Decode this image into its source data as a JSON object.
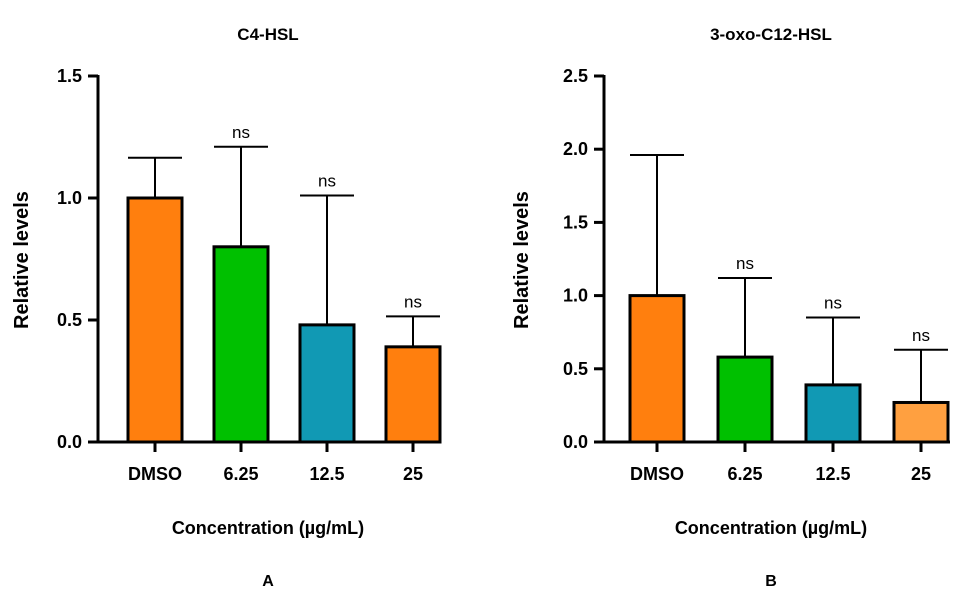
{
  "chart_data": [
    {
      "type": "bar",
      "title": "C4-HSL",
      "xlabel": "Concentration (µg/mL)",
      "ylabel": "Relative levels",
      "panel_label": "A",
      "categories": [
        "DMSO",
        "6.25",
        "12.5",
        "25"
      ],
      "values": [
        1.0,
        0.8,
        0.48,
        0.39
      ],
      "error_upper": [
        1.165,
        1.21,
        1.01,
        0.515
      ],
      "significance": [
        "",
        "ns",
        "ns",
        "ns"
      ],
      "colors": [
        "#ff7f0e",
        "#00c000",
        "#1199b4",
        "#ff7f0e"
      ],
      "ylim": [
        0,
        1.5
      ],
      "yticks": [
        "0.0",
        "0.5",
        "1.0",
        "1.5"
      ],
      "grid": false
    },
    {
      "type": "bar",
      "title": "3-oxo-C12-HSL",
      "xlabel": "Concentration (µg/mL)",
      "ylabel": "Relative levels",
      "panel_label": "B",
      "categories": [
        "DMSO",
        "6.25",
        "12.5",
        "25"
      ],
      "values": [
        1.0,
        0.58,
        0.39,
        0.27
      ],
      "error_upper": [
        1.96,
        1.12,
        0.85,
        0.63
      ],
      "significance": [
        "",
        "ns",
        "ns",
        "ns"
      ],
      "colors": [
        "#ff7f0e",
        "#00c000",
        "#1199b4",
        "#ffa040"
      ],
      "ylim": [
        0,
        2.5
      ],
      "yticks": [
        "0.0",
        "0.5",
        "1.0",
        "1.5",
        "2.0",
        "2.5"
      ],
      "grid": false
    }
  ]
}
